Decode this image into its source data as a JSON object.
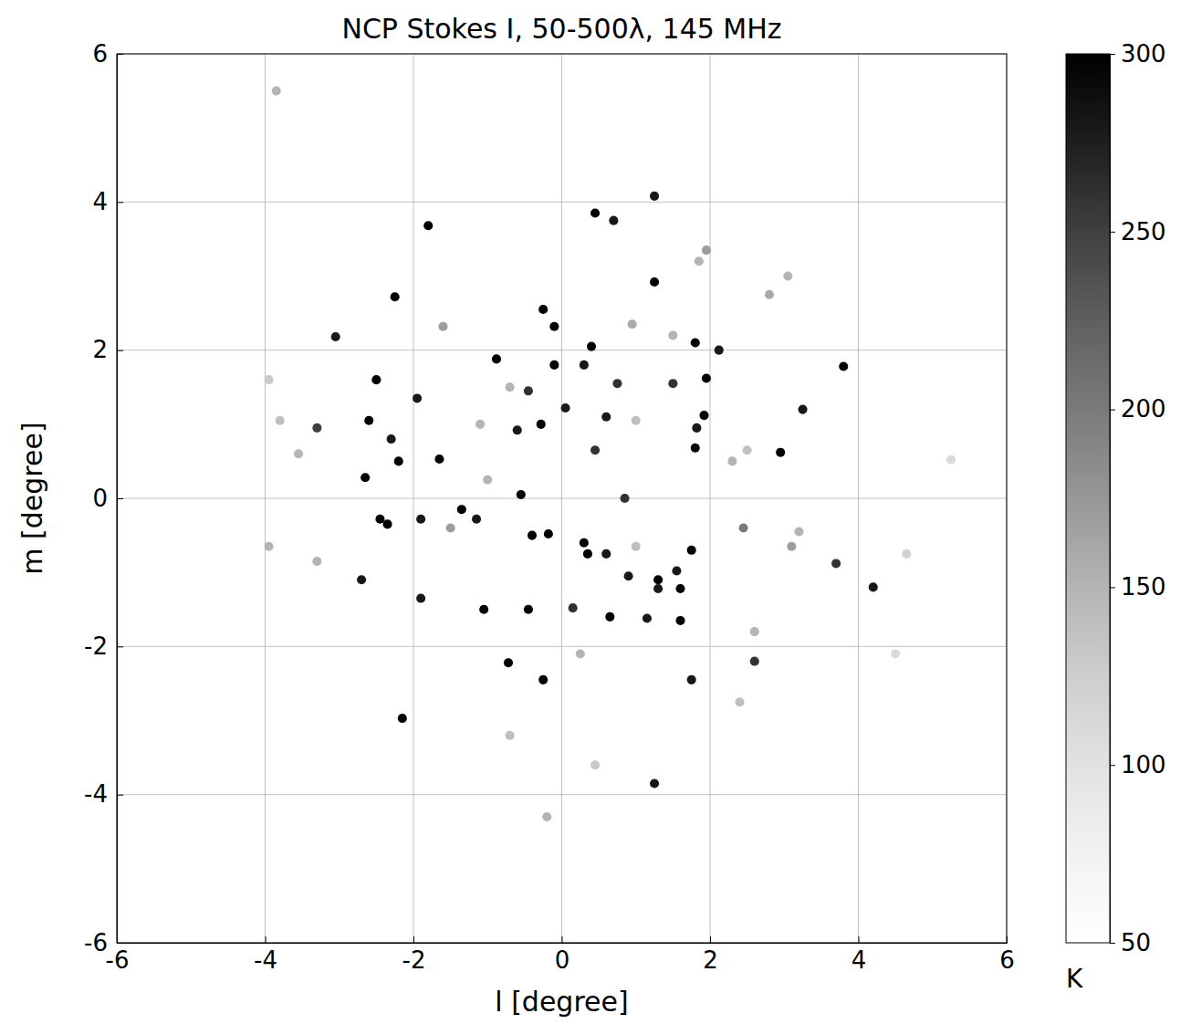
{
  "chart_data": {
    "type": "scatter",
    "title": "NCP Stokes I, 50-500λ, 145 MHz",
    "x_label": "l [degree]",
    "y_label": "m [degree]",
    "xlim": [
      -6,
      6
    ],
    "ylim": [
      -6,
      6
    ],
    "xticks": [
      -6,
      -4,
      -2,
      0,
      2,
      4,
      6
    ],
    "yticks": [
      -6,
      -4,
      -2,
      0,
      2,
      4,
      6
    ],
    "grid": true,
    "marker": "circle",
    "colorbar": {
      "label": "K",
      "range": [
        50,
        300
      ],
      "ticks": [
        50,
        100,
        150,
        200,
        250,
        300
      ]
    },
    "x": [
      -2.15,
      -0.18,
      0.65,
      -0.72,
      -2.65,
      -2.45,
      -0.28,
      -2.5,
      -2.6,
      -2.25,
      1.25,
      0.45,
      0.7,
      1.25,
      -1.8,
      -3.85,
      -0.25,
      -0.1,
      0.4,
      -0.1,
      -0.88,
      1.8,
      1.95,
      1.92,
      3.8,
      2.95,
      1.8,
      1.82,
      -1.65,
      -2.2,
      -2.3,
      -1.95,
      -3.05,
      -3.3,
      -0.55,
      0.3,
      0.35,
      0.6,
      0.9,
      1.3,
      1.3,
      1.55,
      1.6,
      1.75,
      1.6,
      1.15,
      1.75,
      -1.05,
      -1.9,
      -0.45,
      -0.25,
      0.15,
      -2.35,
      -2.7,
      -1.35,
      -1.15,
      -1.9,
      4.2,
      3.7,
      3.25,
      2.12,
      1.5,
      1.25,
      2.6,
      -0.4,
      0.6,
      0.05,
      -0.6,
      -0.45,
      0.75,
      0.3,
      0.85,
      0.45,
      -3.95,
      -3.95,
      -3.8,
      -3.55,
      2.8,
      3.05,
      1.95,
      1.85,
      2.45,
      3.1,
      4.65,
      5.25,
      4.5,
      2.6,
      2.4,
      0.45,
      -0.2,
      0.25,
      -0.7,
      -1.5,
      -1.6,
      -1.1,
      -0.7,
      0.95,
      1.5,
      1.0,
      2.3,
      2.5,
      -1.0,
      1.0,
      3.2,
      -3.3
    ],
    "y": [
      -2.97,
      -0.48,
      -1.6,
      -2.22,
      0.28,
      -0.28,
      1.0,
      1.6,
      1.05,
      2.72,
      2.92,
      3.85,
      3.75,
      4.08,
      3.68,
      5.5,
      2.55,
      2.32,
      2.05,
      1.8,
      1.88,
      2.1,
      1.62,
      1.12,
      1.78,
      0.62,
      0.68,
      0.95,
      0.53,
      0.5,
      0.8,
      1.35,
      2.18,
      0.95,
      0.05,
      -0.6,
      -0.75,
      -0.75,
      -1.05,
      -1.1,
      -1.22,
      -0.98,
      -1.22,
      -0.7,
      -1.65,
      -1.62,
      -2.45,
      -1.5,
      -1.35,
      -1.5,
      -2.45,
      -1.48,
      -0.35,
      -1.1,
      -0.15,
      -0.28,
      -0.28,
      -1.2,
      -0.88,
      1.2,
      2.0,
      1.55,
      -3.85,
      -2.2,
      -0.5,
      1.1,
      1.22,
      0.92,
      1.45,
      1.55,
      1.8,
      0.0,
      0.65,
      -0.65,
      1.6,
      1.05,
      0.6,
      2.75,
      3.0,
      3.35,
      3.2,
      -0.4,
      -0.65,
      -0.75,
      0.52,
      -2.1,
      -1.8,
      -2.75,
      -3.6,
      -4.3,
      -2.1,
      -3.2,
      -0.4,
      2.32,
      1.0,
      1.5,
      2.35,
      2.2,
      1.05,
      0.5,
      0.65,
      0.25,
      -0.65,
      -0.45,
      -0.85
    ],
    "intensity": [
      300,
      300,
      300,
      300,
      300,
      300,
      300,
      300,
      300,
      300,
      300,
      300,
      280,
      280,
      300,
      150,
      300,
      300,
      300,
      300,
      300,
      300,
      300,
      300,
      300,
      300,
      300,
      280,
      300,
      300,
      280,
      280,
      280,
      250,
      300,
      300,
      300,
      280,
      280,
      300,
      280,
      280,
      300,
      300,
      300,
      280,
      280,
      300,
      280,
      300,
      300,
      260,
      300,
      280,
      300,
      280,
      280,
      280,
      260,
      280,
      280,
      260,
      280,
      260,
      300,
      280,
      280,
      280,
      260,
      260,
      280,
      260,
      260,
      150,
      130,
      140,
      150,
      160,
      150,
      170,
      150,
      200,
      170,
      120,
      110,
      110,
      150,
      140,
      130,
      150,
      150,
      140,
      170,
      170,
      150,
      150,
      160,
      150,
      140,
      150,
      140,
      150,
      140,
      150,
      150
    ]
  }
}
